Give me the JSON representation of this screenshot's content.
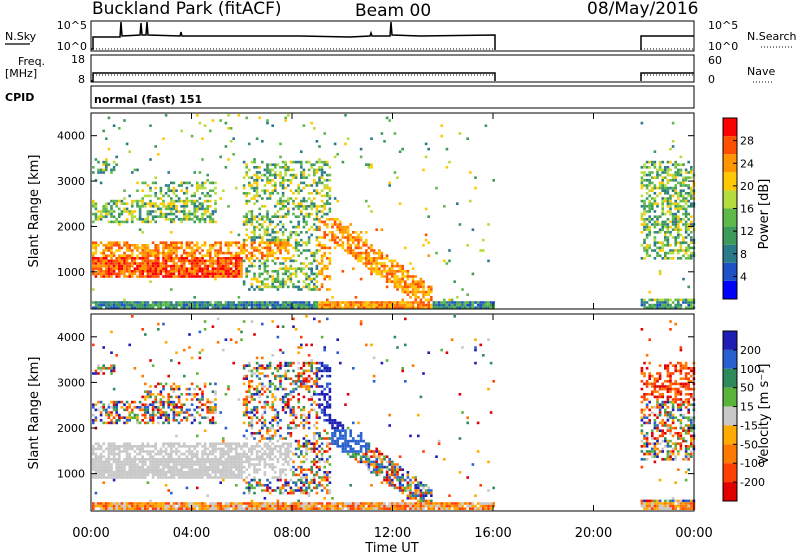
{
  "header": {
    "station": "Buckland Park (fitACF)",
    "beam": "Beam 00",
    "date": "08/May/2016"
  },
  "noise_panel": {
    "left_label": "N.Sky",
    "right_label": "N.Search",
    "left_ticks": [
      "10^5",
      "10^0"
    ],
    "right_ticks": [
      "10^5",
      "10^0"
    ]
  },
  "freq_panel": {
    "left_label_1": "Freq.",
    "left_label_2": "[MHz]",
    "right_label": "Nave",
    "left_ticks": [
      "18",
      "8"
    ],
    "right_ticks": [
      "60",
      "0"
    ]
  },
  "cpid": {
    "label": "CPID",
    "value": "normal (fast) 151"
  },
  "chart_data": [
    {
      "type": "heatmap",
      "name": "power",
      "ylabel": "Slant Range [km]",
      "xlabel": "Time UT",
      "xlim": [
        "00:00",
        "24:00"
      ],
      "ylim": [
        180,
        4500
      ],
      "x_ticks": [
        "00:00",
        "04:00",
        "08:00",
        "12:00",
        "16:00",
        "20:00",
        "00:00"
      ],
      "y_ticks": [
        1000,
        2000,
        3000,
        4000
      ],
      "colorbar": {
        "label": "Power [dB]",
        "ticks": [
          4,
          8,
          12,
          16,
          20,
          24,
          28
        ],
        "colors": [
          "#0000ff",
          "#1e50c8",
          "#2a7a8a",
          "#3c9a5a",
          "#5fb84a",
          "#b4dc3c",
          "#ffc800",
          "#ff9600",
          "#ff5000",
          "#ff0000"
        ]
      },
      "data_gap_ut": [
        "16:00",
        "21:50"
      ]
    },
    {
      "type": "heatmap",
      "name": "velocity",
      "ylabel": "Slant Range [km]",
      "xlabel": "Time UT",
      "xlim": [
        "00:00",
        "24:00"
      ],
      "ylim": [
        180,
        4500
      ],
      "x_ticks": [
        "00:00",
        "04:00",
        "08:00",
        "12:00",
        "16:00",
        "20:00",
        "00:00"
      ],
      "y_ticks": [
        1000,
        2000,
        3000,
        4000
      ],
      "colorbar": {
        "label": "Velocity [m s⁻¹]",
        "ticks": [
          200,
          100,
          50,
          15,
          -15,
          -50,
          -100,
          -200
        ],
        "colors": [
          "#1e1eb4",
          "#2860d0",
          "#2e8a5a",
          "#5ab43c",
          "#c8c8c8",
          "#ffaa00",
          "#ff7800",
          "#ff4000",
          "#e00000"
        ]
      },
      "data_gap_ut": [
        "16:00",
        "21:50"
      ]
    }
  ],
  "x_axis": {
    "ticks": [
      "00:00",
      "04:00",
      "08:00",
      "12:00",
      "16:00",
      "20:00",
      "00:00"
    ],
    "label": "Time UT"
  }
}
